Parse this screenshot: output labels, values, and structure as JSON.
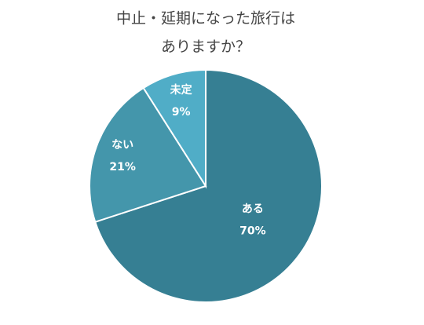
{
  "chart_data": {
    "type": "pie",
    "title": [
      "中止・延期になった旅行は",
      "ありますか？"
    ],
    "categories": [
      "ある",
      "ない",
      "未定"
    ],
    "values": [
      70,
      21,
      9
    ],
    "value_labels": [
      "70%",
      "21%",
      "9%"
    ],
    "colors": [
      "#367f93",
      "#4496ab",
      "#50adc7"
    ]
  }
}
